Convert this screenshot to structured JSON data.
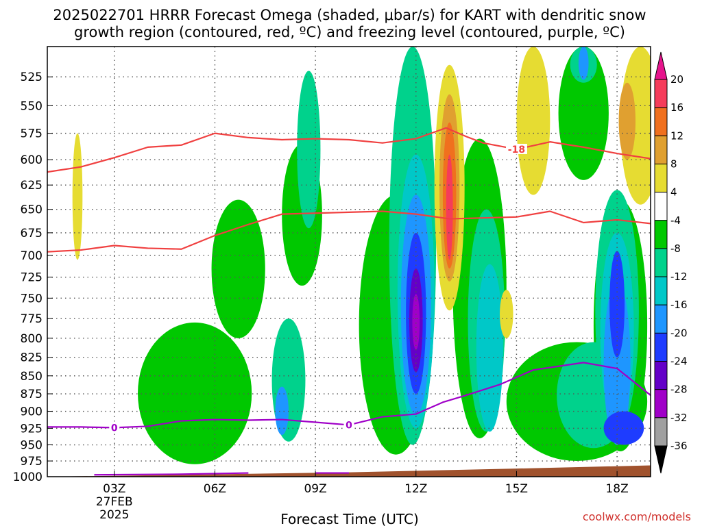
{
  "chart_data": {
    "type": "heatmap",
    "title_lines": [
      "2025022701 HRRR Forecast Omega (shaded, μbar/s) for KART with dendritic snow",
      "growth region (contoured, red, ºC) and freezing level (contoured, purple, ºC)"
    ],
    "xlabel": "Forecast Time (UTC)",
    "ylabel": "",
    "credit": "coolwx.com/models",
    "x_ticks": [
      {
        "label": "03Z",
        "sub": [
          "27FEB",
          "2025"
        ],
        "hour": 3
      },
      {
        "label": "06Z",
        "hour": 6
      },
      {
        "label": "09Z",
        "hour": 9
      },
      {
        "label": "12Z",
        "hour": 12
      },
      {
        "label": "15Z",
        "hour": 15
      },
      {
        "label": "18Z",
        "hour": 18
      }
    ],
    "x_range_hours": [
      1,
      19
    ],
    "y_levels_hpa": [
      525,
      550,
      575,
      600,
      625,
      650,
      675,
      700,
      725,
      750,
      775,
      800,
      825,
      850,
      875,
      900,
      925,
      950,
      975,
      1000
    ],
    "y_range_hpa": [
      500,
      1000
    ],
    "grid": true,
    "colorbar": {
      "labels": [
        "20",
        "16",
        "12",
        "8",
        "4",
        "-4",
        "-8",
        "-12",
        "-16",
        "-20",
        "-24",
        "-28",
        "-32",
        "-36"
      ],
      "bins": [
        {
          "from": 16,
          "to": 20,
          "color": "#f53c5a"
        },
        {
          "from": 12,
          "to": 16,
          "color": "#f0701e"
        },
        {
          "from": 8,
          "to": 12,
          "color": "#e0a030"
        },
        {
          "from": 4,
          "to": 8,
          "color": "#e6dc32"
        },
        {
          "from": -4,
          "to": 4,
          "color": "#ffffff"
        },
        {
          "from": -8,
          "to": -4,
          "color": "#00c800"
        },
        {
          "from": -12,
          "to": -8,
          "color": "#00d28c"
        },
        {
          "from": -16,
          "to": -12,
          "color": "#00c8c8"
        },
        {
          "from": -20,
          "to": -16,
          "color": "#1e96ff"
        },
        {
          "from": -24,
          "to": -20,
          "color": "#1e3cff"
        },
        {
          "from": -28,
          "to": -24,
          "color": "#6400c8"
        },
        {
          "from": -32,
          "to": -28,
          "color": "#a000c8"
        },
        {
          "from": -36,
          "to": -32,
          "color": "#a0a0a0"
        }
      ],
      "top_extension_color": "#e6148c",
      "bottom_extension_color": "#000000"
    },
    "omega_cells": [
      {
        "x": 1.9,
        "y": 640,
        "w": 0.3,
        "h": 130,
        "color": "#e6dc32"
      },
      {
        "x": 8.6,
        "y": 660,
        "w": 1.2,
        "h": 150,
        "color": "#00c800"
      },
      {
        "x": 5.4,
        "y": 880,
        "w": 3.4,
        "h": 200,
        "color": "#00c800"
      },
      {
        "x": 6.7,
        "y": 720,
        "w": 1.6,
        "h": 160,
        "color": "#00c800"
      },
      {
        "x": 11.4,
        "y": 800,
        "w": 2.2,
        "h": 330,
        "color": "#00c800"
      },
      {
        "x": 13.9,
        "y": 760,
        "w": 1.6,
        "h": 360,
        "color": "#00c800"
      },
      {
        "x": 16.8,
        "y": 890,
        "w": 4.2,
        "h": 170,
        "color": "#00c800"
      },
      {
        "x": 18.1,
        "y": 800,
        "w": 1.6,
        "h": 320,
        "color": "#00c800"
      },
      {
        "x": 17.0,
        "y": 560,
        "w": 1.5,
        "h": 120,
        "color": "#00c800"
      },
      {
        "x": 8.2,
        "y": 860,
        "w": 1.0,
        "h": 170,
        "color": "#00d28c"
      },
      {
        "x": 11.9,
        "y": 700,
        "w": 1.4,
        "h": 500,
        "color": "#00d28c"
      },
      {
        "x": 14.1,
        "y": 790,
        "w": 1.1,
        "h": 280,
        "color": "#00d28c"
      },
      {
        "x": 17.3,
        "y": 880,
        "w": 2.2,
        "h": 150,
        "color": "#00d28c"
      },
      {
        "x": 18.0,
        "y": 780,
        "w": 1.3,
        "h": 300,
        "color": "#00d28c"
      },
      {
        "x": 12.0,
        "y": 760,
        "w": 1.1,
        "h": 330,
        "color": "#00c8c8"
      },
      {
        "x": 14.2,
        "y": 820,
        "w": 0.8,
        "h": 220,
        "color": "#00c8c8"
      },
      {
        "x": 18.0,
        "y": 800,
        "w": 1.0,
        "h": 250,
        "color": "#00c8c8"
      },
      {
        "x": 12.0,
        "y": 770,
        "w": 0.9,
        "h": 270,
        "color": "#1e96ff"
      },
      {
        "x": 18.0,
        "y": 840,
        "w": 0.8,
        "h": 220,
        "color": "#1e96ff"
      },
      {
        "x": 12.0,
        "y": 775,
        "w": 0.6,
        "h": 200,
        "color": "#1e3cff"
      },
      {
        "x": 18.0,
        "y": 760,
        "w": 0.45,
        "h": 130,
        "color": "#1e3cff"
      },
      {
        "x": 18.2,
        "y": 925,
        "w": 1.2,
        "h": 50,
        "color": "#1e3cff"
      },
      {
        "x": 12.0,
        "y": 780,
        "w": 0.4,
        "h": 130,
        "color": "#6400c8"
      },
      {
        "x": 12.0,
        "y": 780,
        "w": 0.22,
        "h": 70,
        "color": "#a000c8"
      },
      {
        "x": 8.8,
        "y": 595,
        "w": 0.7,
        "h": 150,
        "color": "#00d28c"
      },
      {
        "x": 8.0,
        "y": 900,
        "w": 0.4,
        "h": 70,
        "color": "#1e96ff"
      },
      {
        "x": 13.0,
        "y": 640,
        "w": 0.9,
        "h": 250,
        "color": "#e6dc32"
      },
      {
        "x": 13.0,
        "y": 635,
        "w": 0.6,
        "h": 190,
        "color": "#e0a030"
      },
      {
        "x": 13.0,
        "y": 640,
        "w": 0.4,
        "h": 150,
        "color": "#f0701e"
      },
      {
        "x": 13.0,
        "y": 650,
        "w": 0.2,
        "h": 110,
        "color": "#f53c5a"
      },
      {
        "x": 15.5,
        "y": 520,
        "w": 1.0,
        "h": 230,
        "color": "#e6dc32"
      },
      {
        "x": 14.7,
        "y": 770,
        "w": 0.4,
        "h": 60,
        "color": "#e6dc32"
      },
      {
        "x": 18.7,
        "y": 560,
        "w": 1.2,
        "h": 170,
        "color": "#e6dc32"
      },
      {
        "x": 18.3,
        "y": 565,
        "w": 0.5,
        "h": 70,
        "color": "#e0a030"
      },
      {
        "x": 17.0,
        "y": 500,
        "w": 0.8,
        "h": 60,
        "color": "#00d28c"
      },
      {
        "x": 17.0,
        "y": 510,
        "w": 0.3,
        "h": 35,
        "color": "#1e96ff"
      }
    ],
    "dgz_top_contour": {
      "label": "-18",
      "label_hour": 15,
      "hours": [
        1,
        2,
        3,
        4,
        5,
        6,
        7,
        8,
        9,
        10,
        11,
        12,
        12.9,
        13.5,
        14,
        15,
        16,
        17,
        18,
        19
      ],
      "hpa": [
        612,
        607,
        598,
        588,
        586,
        575,
        579,
        581,
        580,
        581,
        584,
        580,
        570,
        578,
        584,
        590,
        583,
        588,
        594,
        599
      ]
    },
    "dgz_bottom_contour": {
      "hours": [
        1,
        2,
        3,
        4,
        5,
        6,
        7,
        8,
        9,
        10,
        11,
        12,
        13,
        14,
        15,
        16,
        17,
        18,
        19
      ],
      "hpa": [
        696,
        694,
        689,
        692,
        693,
        678,
        666,
        655,
        654,
        653,
        652,
        655,
        660,
        659,
        658,
        652,
        664,
        661,
        665
      ]
    },
    "freezing_level_contour": {
      "label": "0",
      "label_hours": [
        3,
        10
      ],
      "hours": [
        1,
        2,
        3,
        4,
        5,
        6,
        7,
        8,
        9,
        10,
        11,
        12,
        12.8,
        13.5,
        14.5,
        15.5,
        17,
        18,
        19
      ],
      "hpa": [
        923,
        923,
        924,
        922,
        914,
        912,
        913,
        912,
        916,
        920,
        908,
        904,
        887,
        877,
        862,
        842,
        832,
        840,
        877
      ]
    },
    "lower_freezing_contour_segments": [
      {
        "hours": [
          2.4,
          5,
          7
        ],
        "hpa": [
          997,
          996,
          994
        ]
      },
      {
        "hours": [
          9,
          10
        ],
        "hpa": [
          994,
          994
        ]
      }
    ],
    "terrain_hpa_at": {
      "hours": [
        1,
        5,
        10,
        15,
        19
      ],
      "hpa": [
        1000,
        997,
        993,
        987,
        982
      ]
    },
    "colors": {
      "dgz_contour": "#f04040",
      "freezing_contour": "#a000c8",
      "terrain": "#a0522d",
      "grid": "#555555",
      "credit": "#d0312d"
    }
  }
}
